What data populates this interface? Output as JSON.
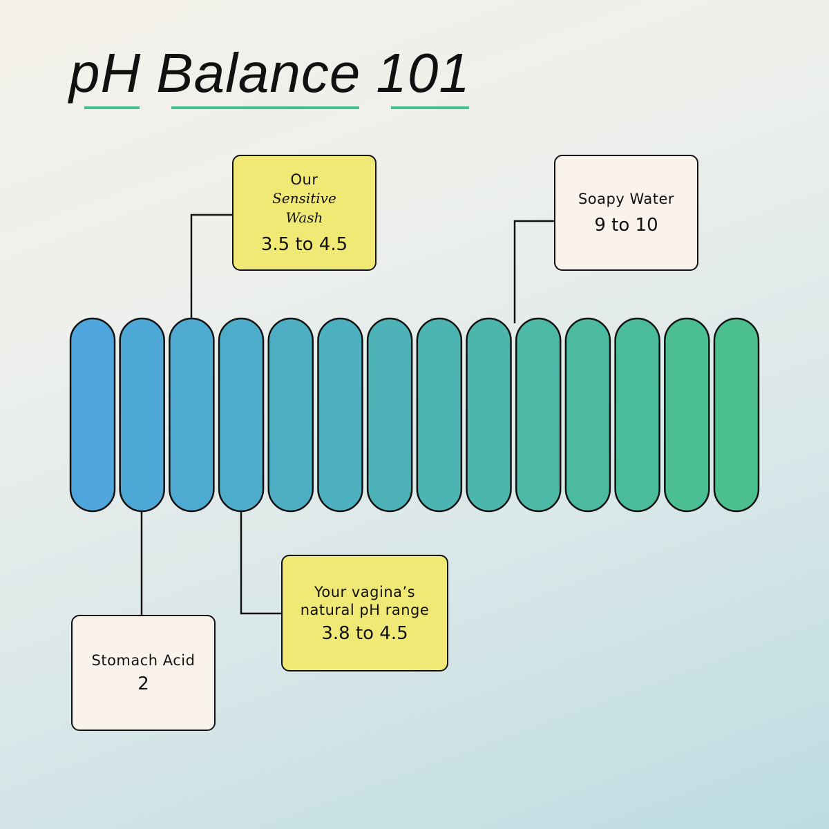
{
  "title": [
    "pH",
    "Balance",
    "101"
  ],
  "scale": {
    "segments": 14,
    "color_start": "#4ea6dc",
    "color_end": "#4bc08e"
  },
  "callouts": {
    "sensitive_wash": {
      "line1": "Our",
      "line2": "Sensitive",
      "line3": "Wash",
      "value": "3.5 to 4.5",
      "color": "#f0e975"
    },
    "soapy_water": {
      "label": "Soapy Water",
      "value": "9 to 10",
      "color": "#faf3ec"
    },
    "stomach_acid": {
      "label": "Stomach Acid",
      "value": "2",
      "color": "#faf3ec"
    },
    "vaginal_ph": {
      "line1": "Your vagina’s",
      "line2": "natural pH range",
      "value": "3.8 to 4.5",
      "color": "#f0e975"
    }
  },
  "accent": "#45bf8e"
}
